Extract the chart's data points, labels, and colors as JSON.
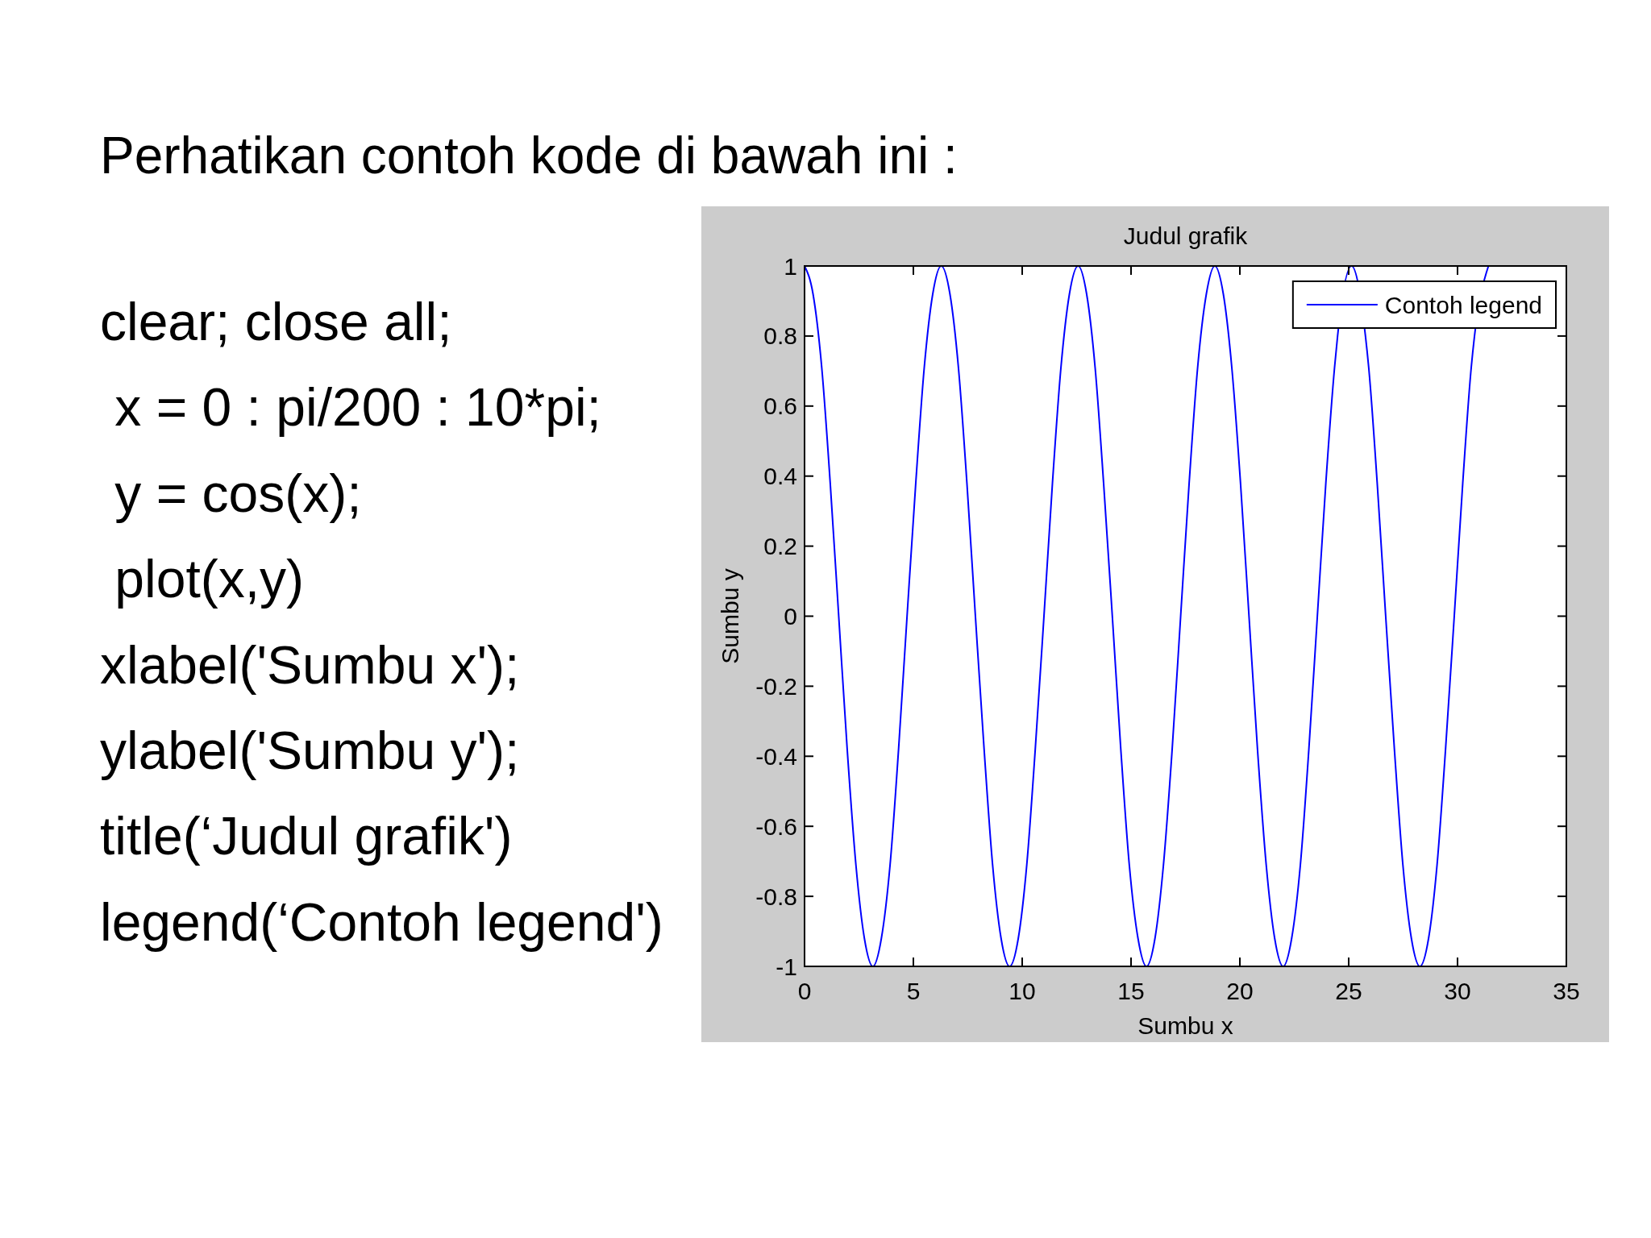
{
  "chart_data": {
    "type": "line",
    "title": "Judul grafik",
    "xlabel": "Sumbu x",
    "ylabel": "Sumbu y",
    "annotations": [
      "Perhatikan contoh kode di bawah ini :",
      "clear; close all;",
      " x = 0 : pi/200 : 10*pi;",
      " y = cos(x);",
      " plot(x,y)",
      "xlabel('Sumbu x');",
      "ylabel('Sumbu y');",
      "title(‘Judul grafik')",
      "legend(‘Contoh legend')"
    ],
    "x": [
      0,
      0.39,
      0.79,
      1.18,
      1.57,
      1.96,
      2.36,
      2.75,
      3.14,
      3.53,
      3.93,
      4.32,
      4.71,
      5.11,
      5.5,
      5.89,
      6.28,
      6.68,
      7.07,
      7.46,
      7.85,
      8.25,
      8.64,
      9.03,
      9.42,
      9.82,
      10.21,
      10.6,
      11,
      11.39,
      11.78,
      12.17,
      12.57,
      12.96,
      13.35,
      13.74,
      14.14,
      14.53,
      14.92,
      15.32,
      15.71,
      16.1,
      16.49,
      16.89,
      17.28,
      17.67,
      18.06,
      18.46,
      18.85,
      19.24,
      19.63,
      20.03,
      20.42,
      20.81,
      21.21,
      21.6,
      21.99,
      22.38,
      22.78,
      23.17,
      23.56,
      23.95,
      24.35,
      24.49,
      25.13,
      25.77,
      25.92,
      26.31,
      26.7,
      27.1,
      27.49,
      27.88,
      28.27,
      28.67,
      29.06,
      29.45,
      29.85,
      30.24,
      30.63,
      30.78,
      31.42
    ],
    "series": [
      {
        "name": "Contoh legend",
        "color": "#0000ff",
        "values": [
          1,
          0.92,
          0.71,
          0.38,
          0,
          -0.38,
          -0.71,
          -0.92,
          -1,
          -0.92,
          -0.71,
          -0.38,
          0,
          0.38,
          0.71,
          0.92,
          1,
          0.92,
          0.71,
          0.38,
          0,
          -0.38,
          -0.71,
          -0.92,
          -1,
          -0.92,
          -0.71,
          -0.38,
          0,
          0.38,
          0.71,
          0.92,
          1,
          0.92,
          0.71,
          0.38,
          0,
          -0.38,
          -0.71,
          -0.92,
          -1,
          -0.92,
          -0.71,
          -0.38,
          0,
          0.38,
          0.71,
          0.92,
          1,
          0.92,
          0.71,
          0.38,
          0,
          -0.38,
          -0.71,
          -0.92,
          -1,
          -0.92,
          -0.71,
          -0.38,
          0,
          0.38,
          0.71,
          0.8,
          1,
          0.8,
          0.71,
          0.38,
          0,
          -0.38,
          -0.71,
          -0.92,
          -1,
          -0.92,
          -0.71,
          -0.38,
          0,
          0.38,
          0.71,
          0.8,
          1
        ]
      }
    ],
    "xlim": [
      0,
      35
    ],
    "xticks": [
      0,
      5,
      10,
      15,
      20,
      25,
      30,
      35
    ],
    "ylim": [
      -1,
      1
    ],
    "yticks": [
      -1,
      -0.8,
      -0.6,
      -0.4,
      -0.2,
      0,
      0.2,
      0.4,
      0.6,
      0.8,
      1
    ],
    "legend": "top right"
  }
}
